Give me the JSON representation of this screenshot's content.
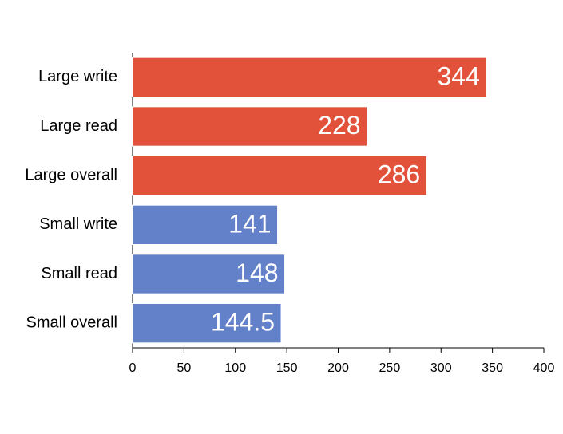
{
  "chart_data": {
    "type": "bar",
    "orientation": "horizontal",
    "categories": [
      "Large write",
      "Large read",
      "Large overall",
      "Small write",
      "Small read",
      "Small overall"
    ],
    "values": [
      344,
      228,
      286,
      141,
      148,
      144.5
    ],
    "colors": [
      "#e2523a",
      "#e2523a",
      "#e2523a",
      "#6381c9",
      "#6381c9",
      "#6381c9"
    ],
    "xlim": [
      0,
      400
    ],
    "xticks": [
      0,
      50,
      100,
      150,
      200,
      250,
      300,
      350,
      400
    ],
    "grid": false
  }
}
